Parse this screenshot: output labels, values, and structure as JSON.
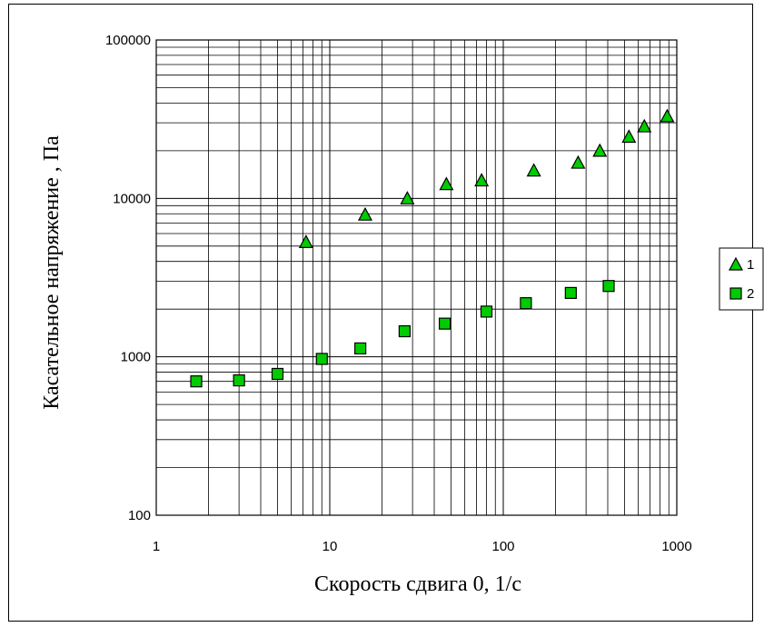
{
  "chart_data": {
    "type": "scatter",
    "x_scale": "log",
    "y_scale": "log",
    "xlim": [
      1,
      1000
    ],
    "ylim": [
      100,
      100000
    ],
    "x_ticks": [
      "1",
      "10",
      "100",
      "1000"
    ],
    "y_ticks": [
      "100",
      "1000",
      "10000",
      "100000"
    ],
    "xlabel": "Скорость сдвига      0, 1/с",
    "ylabel": "Касательное напряжение      , Па",
    "grid": true,
    "legend_position": "right",
    "series": [
      {
        "name": "1",
        "marker": "triangle",
        "color": "#00cc00",
        "x": [
          7.3,
          16,
          28,
          47,
          75,
          150,
          270,
          360,
          530,
          650,
          880
        ],
        "y": [
          5300,
          7900,
          10000,
          12300,
          13000,
          15000,
          16800,
          20000,
          24500,
          28500,
          33000
        ]
      },
      {
        "name": "2",
        "marker": "square",
        "color": "#00cc00",
        "x": [
          1.7,
          3,
          5,
          9,
          15,
          27,
          46,
          80,
          135,
          245,
          405
        ],
        "y": [
          700,
          710,
          780,
          970,
          1130,
          1450,
          1620,
          1930,
          2180,
          2530,
          2800
        ]
      }
    ]
  }
}
